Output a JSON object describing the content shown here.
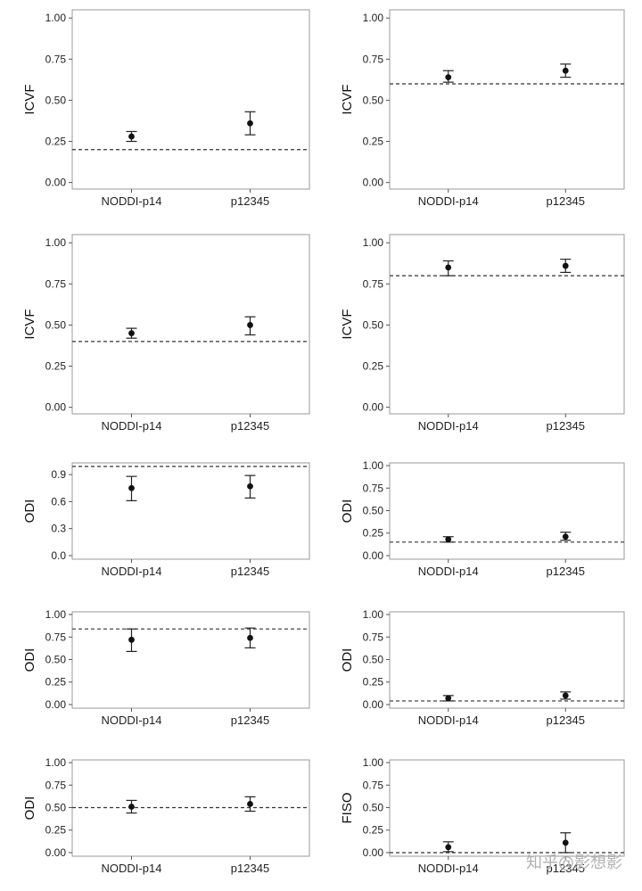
{
  "watermark": "知乎@影想影",
  "chart_data": [
    {
      "type": "errorbar",
      "ylabel": "ICVF",
      "categories": [
        "NODDI-p14",
        "p12345"
      ],
      "ylim": [
        -0.04,
        1.05
      ],
      "yticks": [
        0,
        0.25,
        0.5,
        0.75,
        1.0
      ],
      "tick_decimals": 2,
      "reference_line": 0.2,
      "series": [
        {
          "values": [
            0.28,
            0.36
          ],
          "lower": [
            0.25,
            0.29
          ],
          "upper": [
            0.31,
            0.43
          ]
        }
      ]
    },
    {
      "type": "errorbar",
      "ylabel": "ICVF",
      "categories": [
        "NODDI-p14",
        "p12345"
      ],
      "ylim": [
        -0.04,
        1.05
      ],
      "yticks": [
        0,
        0.25,
        0.5,
        0.75,
        1.0
      ],
      "tick_decimals": 2,
      "reference_line": 0.6,
      "series": [
        {
          "values": [
            0.64,
            0.68
          ],
          "lower": [
            0.61,
            0.64
          ],
          "upper": [
            0.68,
            0.72
          ]
        }
      ]
    },
    {
      "type": "errorbar",
      "ylabel": "ICVF",
      "categories": [
        "NODDI-p14",
        "p12345"
      ],
      "ylim": [
        -0.04,
        1.05
      ],
      "yticks": [
        0,
        0.25,
        0.5,
        0.75,
        1.0
      ],
      "tick_decimals": 2,
      "reference_line": 0.4,
      "series": [
        {
          "values": [
            0.45,
            0.5
          ],
          "lower": [
            0.42,
            0.44
          ],
          "upper": [
            0.48,
            0.55
          ]
        }
      ]
    },
    {
      "type": "errorbar",
      "ylabel": "ICVF",
      "categories": [
        "NODDI-p14",
        "p12345"
      ],
      "ylim": [
        -0.04,
        1.05
      ],
      "yticks": [
        0,
        0.25,
        0.5,
        0.75,
        1.0
      ],
      "tick_decimals": 2,
      "reference_line": 0.8,
      "series": [
        {
          "values": [
            0.85,
            0.86
          ],
          "lower": [
            0.8,
            0.82
          ],
          "upper": [
            0.89,
            0.9
          ]
        }
      ]
    },
    {
      "type": "errorbar",
      "ylabel": "ODI",
      "categories": [
        "NODDI-p14",
        "p12345"
      ],
      "ylim": [
        -0.04,
        1.03
      ],
      "yticks": [
        0,
        0.3,
        0.6,
        0.9
      ],
      "tick_decimals": 1,
      "reference_line": 0.99,
      "series": [
        {
          "values": [
            0.75,
            0.77
          ],
          "lower": [
            0.61,
            0.64
          ],
          "upper": [
            0.88,
            0.89
          ]
        }
      ]
    },
    {
      "type": "errorbar",
      "ylabel": "ODI",
      "categories": [
        "NODDI-p14",
        "p12345"
      ],
      "ylim": [
        -0.04,
        1.03
      ],
      "yticks": [
        0,
        0.25,
        0.5,
        0.75,
        1.0
      ],
      "tick_decimals": 2,
      "reference_line": 0.15,
      "series": [
        {
          "values": [
            0.18,
            0.21
          ],
          "lower": [
            0.15,
            0.17
          ],
          "upper": [
            0.21,
            0.26
          ]
        }
      ]
    },
    {
      "type": "errorbar",
      "ylabel": "ODI",
      "categories": [
        "NODDI-p14",
        "p12345"
      ],
      "ylim": [
        -0.04,
        1.03
      ],
      "yticks": [
        0,
        0.25,
        0.5,
        0.75,
        1.0
      ],
      "tick_decimals": 2,
      "reference_line": 0.84,
      "series": [
        {
          "values": [
            0.72,
            0.74
          ],
          "lower": [
            0.59,
            0.63
          ],
          "upper": [
            0.84,
            0.85
          ]
        }
      ]
    },
    {
      "type": "errorbar",
      "ylabel": "ODI",
      "categories": [
        "NODDI-p14",
        "p12345"
      ],
      "ylim": [
        -0.04,
        1.03
      ],
      "yticks": [
        0,
        0.25,
        0.5,
        0.75,
        1.0
      ],
      "tick_decimals": 2,
      "reference_line": 0.04,
      "series": [
        {
          "values": [
            0.07,
            0.1
          ],
          "lower": [
            0.04,
            0.06
          ],
          "upper": [
            0.1,
            0.14
          ]
        }
      ]
    },
    {
      "type": "errorbar",
      "ylabel": "ODI",
      "categories": [
        "NODDI-p14",
        "p12345"
      ],
      "ylim": [
        -0.04,
        1.03
      ],
      "yticks": [
        0,
        0.25,
        0.5,
        0.75,
        1.0
      ],
      "tick_decimals": 2,
      "reference_line": 0.5,
      "series": [
        {
          "values": [
            0.51,
            0.54
          ],
          "lower": [
            0.44,
            0.46
          ],
          "upper": [
            0.58,
            0.62
          ]
        }
      ]
    },
    {
      "type": "errorbar",
      "ylabel": "FISO",
      "categories": [
        "NODDI-p14",
        "p12345"
      ],
      "ylim": [
        -0.04,
        1.03
      ],
      "yticks": [
        0,
        0.25,
        0.5,
        0.75,
        1.0
      ],
      "tick_decimals": 2,
      "reference_line": 0.0,
      "series": [
        {
          "values": [
            0.06,
            0.11
          ],
          "lower": [
            0.01,
            0.0
          ],
          "upper": [
            0.12,
            0.22
          ]
        }
      ]
    }
  ]
}
